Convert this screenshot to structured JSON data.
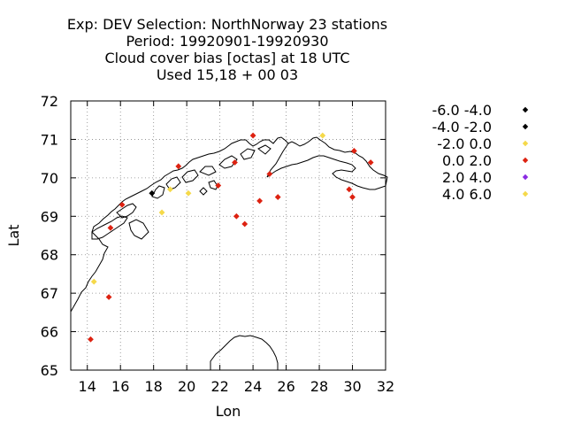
{
  "chart_data": {
    "type": "scatter",
    "title": [
      "Exp: DEV   Selection: NorthNorway     23 stations",
      "Period: 19920901-19920930",
      "Cloud cover bias [octas] at  18 UTC",
      "Used  15,18 + 00 03"
    ],
    "xlabel": "Lon",
    "ylabel": "Lat",
    "xlim": [
      13,
      32
    ],
    "ylim": [
      65,
      72
    ],
    "xticks": [
      14,
      16,
      18,
      20,
      22,
      24,
      26,
      28,
      30,
      32
    ],
    "yticks": [
      65,
      66,
      67,
      68,
      69,
      70,
      71,
      72
    ],
    "grid": true,
    "legend_position": "right",
    "series": [
      {
        "name": "-6.0 -4.0",
        "color": "#000000",
        "points": []
      },
      {
        "name": "-4.0 -2.0",
        "color": "#000000",
        "points": [
          [
            17.9,
            69.6
          ]
        ]
      },
      {
        "name": "-2.0 0.0",
        "color": "#f5d94a",
        "points": [
          [
            14.4,
            67.3
          ],
          [
            18.5,
            69.1
          ],
          [
            19.0,
            69.7
          ],
          [
            20.1,
            69.6
          ],
          [
            28.2,
            71.1
          ]
        ]
      },
      {
        "name": "0.0 2.0",
        "color": "#dd2211",
        "points": [
          [
            14.2,
            65.8
          ],
          [
            15.3,
            66.9
          ],
          [
            15.4,
            68.7
          ],
          [
            16.1,
            69.3
          ],
          [
            19.5,
            70.3
          ],
          [
            21.9,
            69.8
          ],
          [
            22.9,
            70.4
          ],
          [
            23.0,
            69.0
          ],
          [
            23.5,
            68.8
          ],
          [
            24.0,
            71.1
          ],
          [
            24.4,
            69.4
          ],
          [
            25.0,
            70.1
          ],
          [
            25.5,
            69.5
          ],
          [
            29.8,
            69.7
          ],
          [
            30.0,
            69.5
          ],
          [
            30.1,
            70.7
          ],
          [
            31.1,
            70.4
          ]
        ]
      },
      {
        "name": "2.0 4.0",
        "color": "#8a2be2",
        "points": []
      },
      {
        "name": "4.0 6.0",
        "color": "#f5d94a",
        "points": []
      }
    ]
  }
}
